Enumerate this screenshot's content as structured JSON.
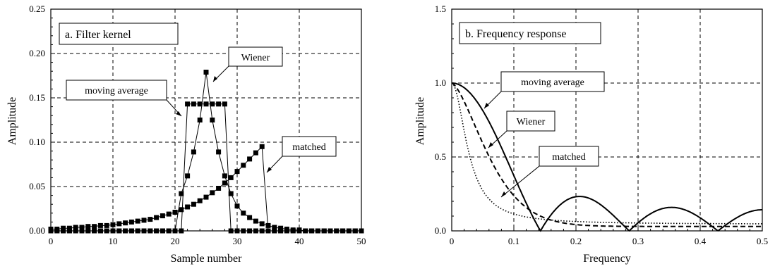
{
  "chart_data": [
    {
      "id": "a",
      "type": "line",
      "title": "a.  Filter kernel",
      "xlabel": "Sample number",
      "ylabel": "Amplitude",
      "xlim": [
        0,
        50
      ],
      "ylim": [
        0,
        0.25
      ],
      "xticks": [
        "0",
        "10",
        "20",
        "30",
        "40",
        "50"
      ],
      "yticks": [
        "0.00",
        "0.05",
        "0.10",
        "0.15",
        "0.20",
        "0.25"
      ],
      "grid": true,
      "markers": "square",
      "series": [
        {
          "name": "moving average",
          "x": [
            0,
            1,
            2,
            3,
            4,
            5,
            6,
            7,
            8,
            9,
            10,
            11,
            12,
            13,
            14,
            15,
            16,
            17,
            18,
            19,
            20,
            21,
            22,
            23,
            24,
            25,
            26,
            27,
            28,
            29,
            30,
            31,
            32,
            33,
            34,
            35,
            36,
            37,
            38,
            39,
            40,
            41,
            42,
            43,
            44,
            45,
            46,
            47,
            48,
            49,
            50
          ],
          "values": [
            0,
            0,
            0,
            0,
            0,
            0,
            0,
            0,
            0,
            0,
            0,
            0,
            0,
            0,
            0,
            0,
            0,
            0,
            0,
            0,
            0,
            0,
            0.143,
            0.143,
            0.143,
            0.143,
            0.143,
            0.143,
            0.143,
            0,
            0,
            0,
            0,
            0,
            0,
            0,
            0,
            0,
            0,
            0,
            0,
            0,
            0,
            0,
            0,
            0,
            0,
            0,
            0,
            0,
            0
          ]
        },
        {
          "name": "Wiener",
          "x": [
            0,
            1,
            2,
            3,
            4,
            5,
            6,
            7,
            8,
            9,
            10,
            11,
            12,
            13,
            14,
            15,
            16,
            17,
            18,
            19,
            20,
            21,
            22,
            23,
            24,
            25,
            26,
            27,
            28,
            29,
            30,
            31,
            32,
            33,
            34,
            35,
            36,
            37,
            38,
            39,
            40,
            41,
            42,
            43,
            44,
            45,
            46,
            47,
            48,
            49,
            50
          ],
          "values": [
            0,
            0,
            0,
            0,
            0,
            0,
            0,
            0,
            0,
            0,
            0,
            0,
            0,
            0,
            0,
            0,
            0,
            0,
            0,
            0,
            0,
            0.042,
            0.062,
            0.089,
            0.125,
            0.179,
            0.125,
            0.089,
            0.062,
            0.042,
            0.028,
            0.02,
            0.015,
            0.011,
            0.008,
            0.006,
            0.004,
            0.003,
            0.002,
            0.001,
            0.001,
            0,
            0,
            0,
            0,
            0,
            0,
            0,
            0,
            0,
            0
          ]
        },
        {
          "name": "matched",
          "x": [
            0,
            1,
            2,
            3,
            4,
            5,
            6,
            7,
            8,
            9,
            10,
            11,
            12,
            13,
            14,
            15,
            16,
            17,
            18,
            19,
            20,
            21,
            22,
            23,
            24,
            25,
            26,
            27,
            28,
            29,
            30,
            31,
            32,
            33,
            34,
            35,
            36,
            37,
            38,
            39,
            40,
            41,
            42,
            43,
            44,
            45,
            46,
            47,
            48,
            49,
            50
          ],
          "values": [
            0.002,
            0.002,
            0.003,
            0.003,
            0.004,
            0.004,
            0.005,
            0.005,
            0.006,
            0.006,
            0.007,
            0.008,
            0.009,
            0.01,
            0.011,
            0.012,
            0.013,
            0.015,
            0.017,
            0.019,
            0.021,
            0.024,
            0.027,
            0.03,
            0.034,
            0.038,
            0.043,
            0.048,
            0.054,
            0.06,
            0.067,
            0.074,
            0.081,
            0.088,
            0.095,
            0,
            0,
            0,
            0,
            0,
            0,
            0,
            0,
            0,
            0,
            0,
            0,
            0,
            0,
            0,
            0
          ]
        }
      ],
      "annotations": [
        "moving average",
        "Wiener",
        "matched"
      ]
    },
    {
      "id": "b",
      "type": "line",
      "title": "b.  Frequency response",
      "xlabel": "Frequency",
      "ylabel": "Amplitude",
      "xlim": [
        0,
        0.5
      ],
      "ylim": [
        0,
        1.5
      ],
      "xticks": [
        "0",
        "0.1",
        "0.2",
        "0.3",
        "0.4",
        "0.5"
      ],
      "yticks": [
        "0.0",
        "0.5",
        "1.0",
        "1.5"
      ],
      "grid": true,
      "series": [
        {
          "name": "moving average",
          "line_style": "solid",
          "window_length": 7
        },
        {
          "name": "Wiener",
          "line_style": "dashed"
        },
        {
          "name": "matched",
          "line_style": "dotted"
        }
      ],
      "annotations": [
        "moving average",
        "Wiener",
        "matched"
      ]
    }
  ]
}
